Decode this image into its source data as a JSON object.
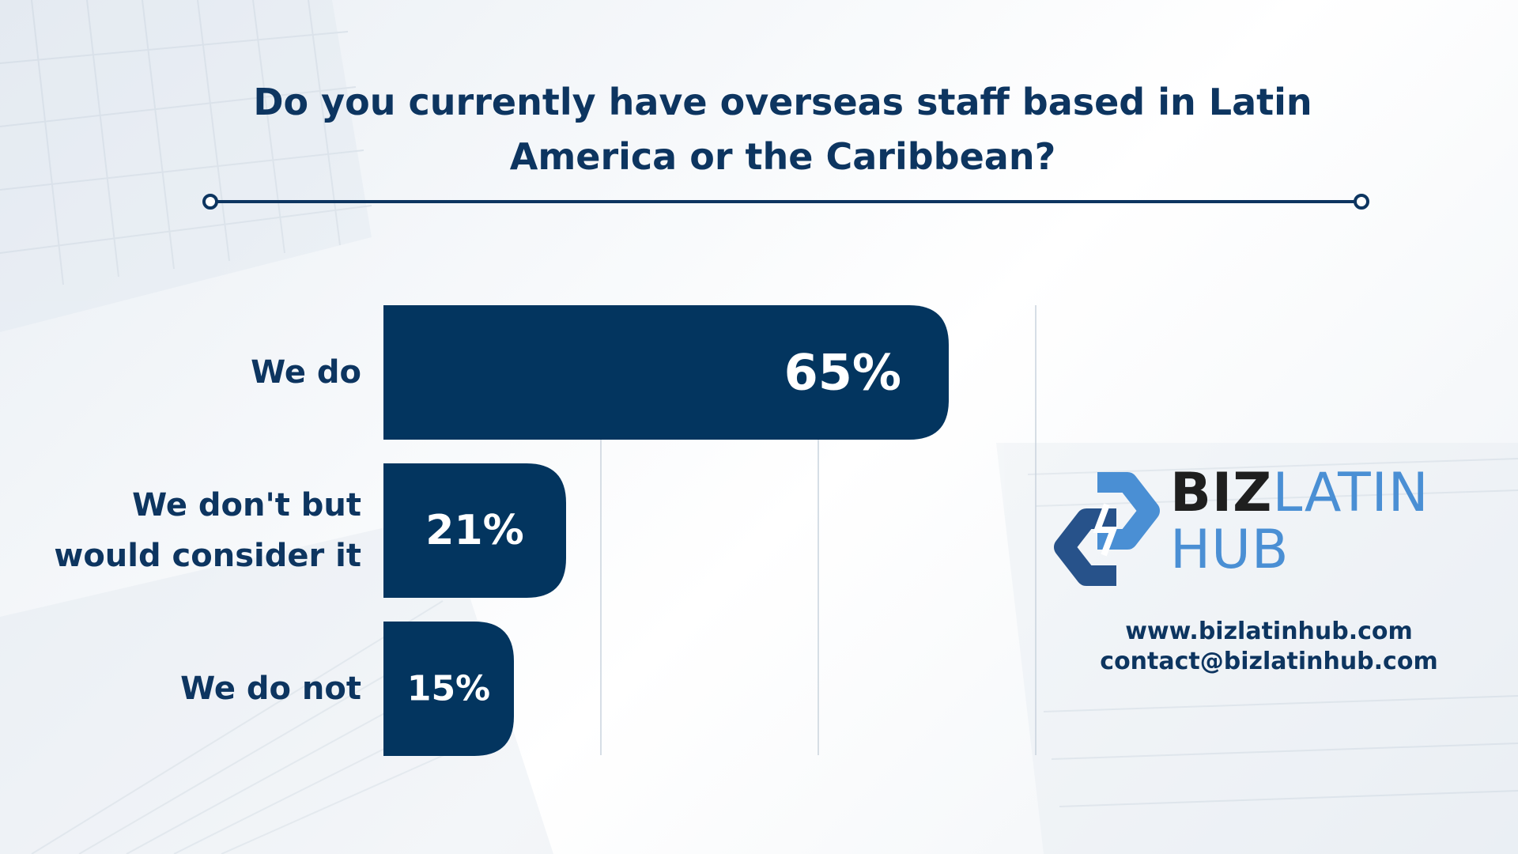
{
  "title": "Do you currently have overseas staff based in Latin America or the Caribbean?",
  "colors": {
    "navy": "#03355f",
    "title": "#0d3560",
    "brand_dark": "#1f1f1f",
    "brand_blue": "#4a8fd4",
    "grid": "#c9d3dd"
  },
  "chart_data": {
    "type": "bar",
    "orientation": "horizontal",
    "title": "Do you currently have overseas staff based in Latin America or the Caribbean?",
    "categories": [
      [
        "We do"
      ],
      [
        "We don't but",
        "would consider it"
      ],
      [
        "We do not"
      ]
    ],
    "values": [
      65,
      21,
      15
    ],
    "value_labels": [
      "65%",
      "21%",
      "15%"
    ],
    "unit": "%",
    "xlim": [
      0,
      75
    ],
    "grid": true,
    "legend": "none"
  },
  "logo": {
    "brand_part1": "BIZ",
    "brand_part2": "LATIN",
    "brand_part3": "HUB",
    "icon": "bizlatinhub-logo-icon"
  },
  "contact": {
    "website": "www.bizlatinhub.com",
    "email": "contact@bizlatinhub.com"
  }
}
